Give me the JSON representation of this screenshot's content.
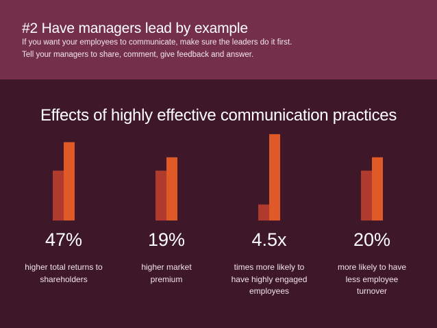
{
  "header": {
    "title": "#2 Have managers lead by example",
    "subtitle_line1": "If you want your employees to communicate, make sure the leaders do it first.",
    "subtitle_line2": "Tell your managers to share, comment, give feedback and answer."
  },
  "colors": {
    "header_bg": "#74304b",
    "body_bg": "#3e1728",
    "bar_dark": "#b03a2e",
    "bar_light": "#e05a27"
  },
  "chart_data": {
    "type": "bar",
    "title": "Effects of highly effective communication practices",
    "categories": [
      "47%",
      "19%",
      "4.5x",
      "20%"
    ],
    "descriptions": [
      [
        "higher total returns to",
        "shareholders"
      ],
      [
        "higher market",
        "premium"
      ],
      [
        "times more likely to",
        "have highly engaged",
        "employees"
      ],
      [
        "more likely to have",
        "less employee",
        "turnover"
      ]
    ],
    "series": [
      {
        "values": [
          1.0,
          1.0,
          1.0,
          1.0
        ]
      },
      {
        "values": [
          1.47,
          1.19,
          4.5,
          1.2
        ]
      }
    ],
    "bar_heights_relative": [
      [
        0.56,
        0.88
      ],
      [
        0.56,
        0.71
      ],
      [
        0.18,
        0.97
      ],
      [
        0.56,
        0.71
      ]
    ]
  }
}
